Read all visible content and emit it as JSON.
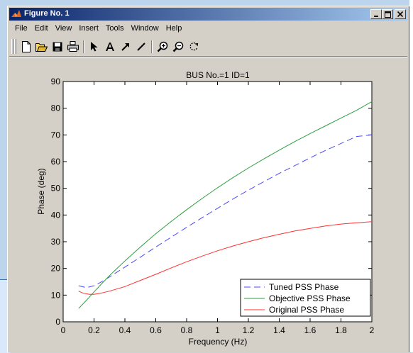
{
  "window": {
    "title": "Figure No. 1",
    "buttons": {
      "minimize": "_",
      "maximize": "□",
      "close": "×"
    }
  },
  "menu": [
    "File",
    "Edit",
    "View",
    "Insert",
    "Tools",
    "Window",
    "Help"
  ],
  "toolbar": {
    "icons": [
      "new-figure-icon",
      "open-icon",
      "save-icon",
      "print-icon",
      "select-arrow-icon",
      "text-icon",
      "arrow-icon",
      "line-icon",
      "zoom-in-icon",
      "zoom-out-icon",
      "rotate-icon"
    ]
  },
  "colors": {
    "tuned": "#4a4aff",
    "objective": "#2e9e3e",
    "original": "#ff3030",
    "title_bar_start": "#0a246a",
    "title_bar_end": "#a6caf0"
  },
  "chart_data": {
    "type": "line",
    "title": "BUS No.=1  ID=1",
    "xlabel": "Frequency (Hz)",
    "ylabel": "Phase (deg)",
    "xlim": [
      0,
      2
    ],
    "ylim": [
      0,
      90
    ],
    "xticks": [
      "0",
      "0.2",
      "0.4",
      "0.6",
      "0.8",
      "1",
      "1.2",
      "1.4",
      "1.6",
      "1.8",
      "2"
    ],
    "yticks": [
      "0",
      "10",
      "20",
      "30",
      "40",
      "50",
      "60",
      "70",
      "80",
      "90"
    ],
    "grid": false,
    "legend_position": "bottom-right",
    "series": [
      {
        "name": "Tuned PSS Phase",
        "style": "dashed",
        "x": [
          0.1,
          0.15,
          0.2,
          0.25,
          0.3,
          0.4,
          0.5,
          0.6,
          0.7,
          0.8,
          0.9,
          1.0,
          1.1,
          1.2,
          1.3,
          1.4,
          1.5,
          1.6,
          1.7,
          1.8,
          1.9,
          2.0
        ],
        "y": [
          13.5,
          12.8,
          13.5,
          15.0,
          16.8,
          20.5,
          24.2,
          28.0,
          31.7,
          35.4,
          39.0,
          42.5,
          46.0,
          49.3,
          52.5,
          55.6,
          58.5,
          61.4,
          64.2,
          66.8,
          69.4,
          70.0
        ]
      },
      {
        "name": "Objective PSS Phase",
        "style": "solid",
        "x": [
          0.1,
          0.15,
          0.2,
          0.25,
          0.3,
          0.4,
          0.5,
          0.6,
          0.7,
          0.8,
          0.9,
          1.0,
          1.1,
          1.2,
          1.3,
          1.4,
          1.5,
          1.6,
          1.7,
          1.8,
          1.9,
          2.0
        ],
        "y": [
          5.0,
          8.0,
          11.2,
          14.3,
          17.3,
          22.8,
          28.0,
          33.0,
          37.6,
          42.0,
          46.2,
          50.2,
          54.0,
          57.6,
          61.0,
          64.3,
          67.5,
          70.5,
          73.4,
          76.3,
          79.2,
          82.5
        ]
      },
      {
        "name": "Original PSS Phase",
        "style": "solid",
        "x": [
          0.1,
          0.13,
          0.17,
          0.2,
          0.25,
          0.3,
          0.4,
          0.5,
          0.6,
          0.7,
          0.8,
          0.9,
          1.0,
          1.1,
          1.2,
          1.3,
          1.4,
          1.5,
          1.6,
          1.7,
          1.8,
          1.9,
          2.0
        ],
        "y": [
          11.5,
          10.7,
          10.3,
          10.3,
          10.8,
          11.5,
          13.2,
          15.5,
          17.8,
          20.2,
          22.5,
          24.6,
          26.6,
          28.4,
          30.0,
          31.5,
          32.8,
          34.0,
          35.0,
          35.9,
          36.6,
          37.1,
          37.5
        ]
      }
    ]
  }
}
